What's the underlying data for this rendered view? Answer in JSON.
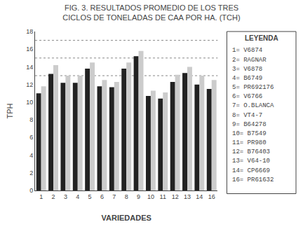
{
  "chart_data": {
    "type": "bar",
    "title": "FIG. 3. RESULTADOS PROMEDIO DE LOS TRES CICLOS DE TONELADAS DE CAA POR HA. (TCH)",
    "xlabel": "VARIEDADES",
    "ylabel": "TPH",
    "categories": [
      "1",
      "2",
      "3",
      "4",
      "5",
      "6",
      "7",
      "8",
      "9",
      "10",
      "11",
      "12",
      "13",
      "14",
      "16"
    ],
    "series": [
      {
        "color": "#222222",
        "values": [
          11.0,
          13.2,
          12.2,
          12.2,
          13.8,
          11.8,
          11.7,
          13.8,
          15.2,
          10.7,
          10.4,
          12.3,
          13.3,
          12.0,
          11.5
        ]
      },
      {
        "color": "#cccccc",
        "values": [
          11.8,
          14.2,
          13.0,
          13.0,
          14.5,
          12.5,
          12.3,
          14.5,
          15.8,
          11.3,
          11.1,
          13.1,
          14.0,
          13.0,
          12.5
        ]
      }
    ],
    "ylim": [
      0,
      18
    ],
    "yticks": [
      0,
      2,
      4,
      6,
      8,
      10,
      12,
      14,
      16,
      18
    ],
    "grid": false,
    "reference_lines": [
      13.0,
      15.0,
      17.0
    ],
    "annotations": {
      "title": "LEYENDA",
      "items": [
        "1= V6874",
        "2= RAGNAR",
        "3= V6878",
        "4= B6749",
        "5= PR692176",
        "6= V6766",
        "7= O.BLANCA",
        "8= VT4-7",
        "9= B64278",
        "10= B7549",
        "11= PR980",
        "12= B76403",
        "13= V64-10",
        "14= CP6669",
        "16= PR61632"
      ]
    }
  }
}
